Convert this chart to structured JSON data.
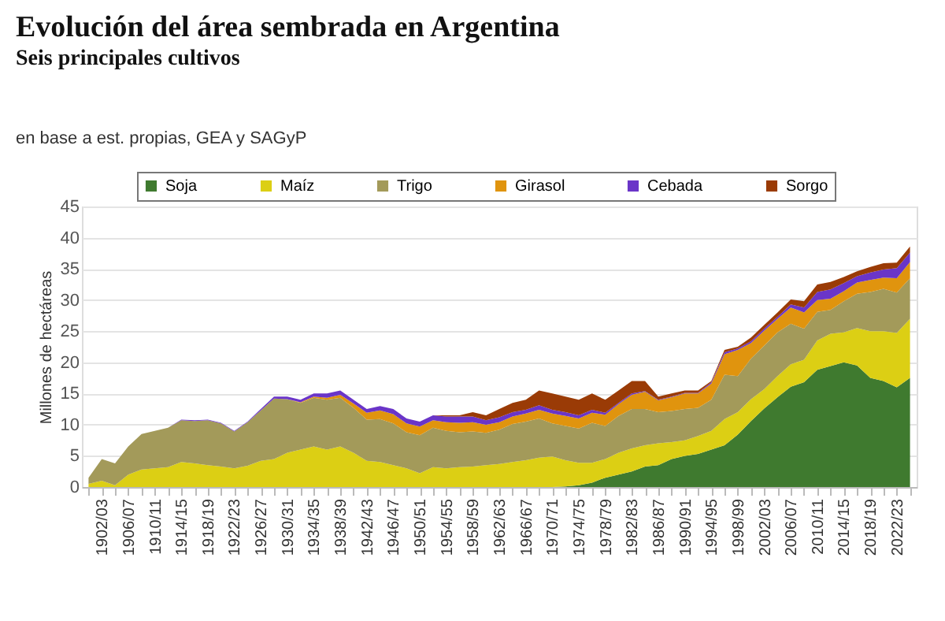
{
  "chart_data": {
    "type": "area",
    "stacked": true,
    "title": "Evolución del área sembrada en Argentina",
    "subtitle": "Seis principales cultivos",
    "annotations": [
      "en base a est. propias, GEA y SAGyP"
    ],
    "ylabel": "Millones de hectáreas",
    "ylim": [
      0,
      45
    ],
    "yticks": [
      0,
      5,
      10,
      15,
      20,
      25,
      30,
      35,
      40,
      45
    ],
    "grid": "y",
    "legend": "top",
    "categories": [
      null,
      "1902/03",
      null,
      "1906/07",
      null,
      "1910/11",
      null,
      "1914/15",
      null,
      "1918/19",
      null,
      "1922/23",
      null,
      "1926/27",
      null,
      "1930/31",
      null,
      "1934/35",
      null,
      "1938/39",
      null,
      "1942/43",
      null,
      "1946/47",
      null,
      "1950/51",
      null,
      "1954/55",
      null,
      "1958/59",
      null,
      "1962/63",
      null,
      "1966/67",
      null,
      "1970/71",
      null,
      "1974/75",
      null,
      "1978/79",
      null,
      "1982/83",
      null,
      "1986/87",
      null,
      "1990/91",
      null,
      "1994/95",
      null,
      "1998/99",
      null,
      "2002/03",
      null,
      "2006/07",
      null,
      "2010/11",
      null,
      "2014/15",
      null,
      "2018/19",
      null,
      "2022/23",
      null
    ],
    "series": [
      {
        "name": "Soja",
        "color": "#3f7a2f",
        "values": [
          0,
          0,
          0,
          0,
          0,
          0,
          0,
          0,
          0,
          0,
          0,
          0,
          0,
          0,
          0,
          0,
          0,
          0,
          0,
          0,
          0,
          0,
          0,
          0,
          0,
          0,
          0,
          0,
          0,
          0,
          0,
          0,
          0,
          0,
          0,
          0,
          0.1,
          0.3,
          0.7,
          1.5,
          2.0,
          2.5,
          3.3,
          3.5,
          4.5,
          5.0,
          5.3,
          6.0,
          6.7,
          8.4,
          10.6,
          12.6,
          14.4,
          16.1,
          16.8,
          18.8,
          19.4,
          20.0,
          19.5,
          17.5,
          17.0,
          16.0,
          17.5
        ]
      },
      {
        "name": "Maíz",
        "color": "#dccf14",
        "values": [
          0.5,
          1.0,
          0.3,
          2.0,
          2.8,
          3.0,
          3.2,
          4.0,
          3.8,
          3.5,
          3.3,
          3.0,
          3.4,
          4.2,
          4.5,
          5.5,
          6.0,
          6.5,
          6.0,
          6.5,
          5.5,
          4.2,
          4.0,
          3.5,
          3.0,
          2.2,
          3.2,
          3.0,
          3.2,
          3.3,
          3.5,
          3.7,
          4.0,
          4.3,
          4.7,
          4.9,
          4.2,
          3.6,
          3.2,
          3.0,
          3.5,
          3.7,
          3.4,
          3.5,
          2.7,
          2.5,
          2.9,
          3.0,
          4.2,
          3.6,
          3.5,
          3.1,
          3.4,
          3.6,
          3.6,
          4.7,
          5.2,
          4.8,
          6.0,
          7.5,
          8.0,
          8.7,
          9.5
        ]
      },
      {
        "name": "Trigo",
        "color": "#a39a5a",
        "values": [
          1.0,
          3.5,
          3.5,
          4.5,
          5.7,
          6.0,
          6.3,
          6.7,
          6.8,
          7.2,
          6.9,
          5.9,
          7.0,
          8.1,
          9.7,
          8.6,
          7.5,
          7.8,
          8.0,
          7.8,
          7.2,
          6.6,
          6.9,
          6.7,
          5.8,
          6.1,
          6.3,
          6.0,
          5.6,
          5.6,
          5.2,
          5.5,
          6.1,
          6.2,
          6.3,
          5.3,
          5.5,
          5.5,
          6.4,
          5.3,
          5.9,
          6.3,
          5.8,
          5.0,
          5.0,
          5.0,
          4.5,
          5.0,
          7.1,
          5.8,
          6.5,
          7.0,
          7.0,
          6.5,
          5.0,
          4.6,
          3.8,
          5.0,
          5.5,
          6.3,
          6.8,
          6.5,
          6.5
        ]
      },
      {
        "name": "Girasol",
        "color": "#e0940e",
        "values": [
          0,
          0,
          0,
          0,
          0,
          0,
          0,
          0,
          0,
          0,
          0,
          0,
          0,
          0,
          0,
          0,
          0.1,
          0.2,
          0.3,
          0.5,
          0.7,
          1.1,
          1.4,
          1.5,
          1.4,
          1.4,
          1.2,
          1.4,
          1.5,
          1.5,
          1.3,
          1.2,
          1.2,
          1.3,
          1.4,
          1.6,
          1.6,
          1.6,
          1.6,
          1.8,
          1.9,
          2.3,
          2.8,
          1.9,
          2.2,
          2.5,
          2.3,
          2.6,
          3.3,
          4.2,
          2.5,
          2.4,
          2.2,
          2.6,
          2.6,
          1.9,
          1.8,
          1.6,
          1.8,
          1.9,
          1.8,
          2.3,
          2.6
        ]
      },
      {
        "name": "Cebada",
        "color": "#6a35c8",
        "values": [
          0,
          0,
          0,
          0,
          0,
          0,
          0,
          0.1,
          0.1,
          0.1,
          0.1,
          0.1,
          0.1,
          0.2,
          0.3,
          0.4,
          0.4,
          0.5,
          0.7,
          0.7,
          0.6,
          0.6,
          0.7,
          0.8,
          0.8,
          0.8,
          0.8,
          0.9,
          1.0,
          0.9,
          0.7,
          0.8,
          0.7,
          0.6,
          0.7,
          0.6,
          0.6,
          0.5,
          0.5,
          0.3,
          0.2,
          0.2,
          0.1,
          0.1,
          0.1,
          0.1,
          0.1,
          0.2,
          0.3,
          0.2,
          0.3,
          0.3,
          0.3,
          0.5,
          0.8,
          1.3,
          1.5,
          1.3,
          1.0,
          1.2,
          1.3,
          1.6,
          1.5
        ]
      },
      {
        "name": "Sorgo",
        "color": "#9a3b06",
        "values": [
          0,
          0,
          0,
          0,
          0,
          0,
          0,
          0,
          0,
          0,
          0,
          0,
          0,
          0,
          0,
          0,
          0,
          0,
          0,
          0,
          0,
          0,
          0,
          0,
          0,
          0,
          0,
          0.2,
          0.2,
          0.7,
          0.8,
          1.3,
          1.5,
          1.6,
          2.4,
          2.6,
          2.5,
          2.5,
          2.6,
          2.1,
          2.0,
          2.0,
          1.6,
          0.5,
          0.5,
          0.4,
          0.4,
          0.2,
          0.4,
          0.3,
          0.6,
          0.6,
          0.7,
          0.8,
          1.0,
          1.2,
          1.2,
          1.0,
          0.8,
          0.9,
          1.0,
          0.9,
          1.0
        ]
      }
    ]
  }
}
